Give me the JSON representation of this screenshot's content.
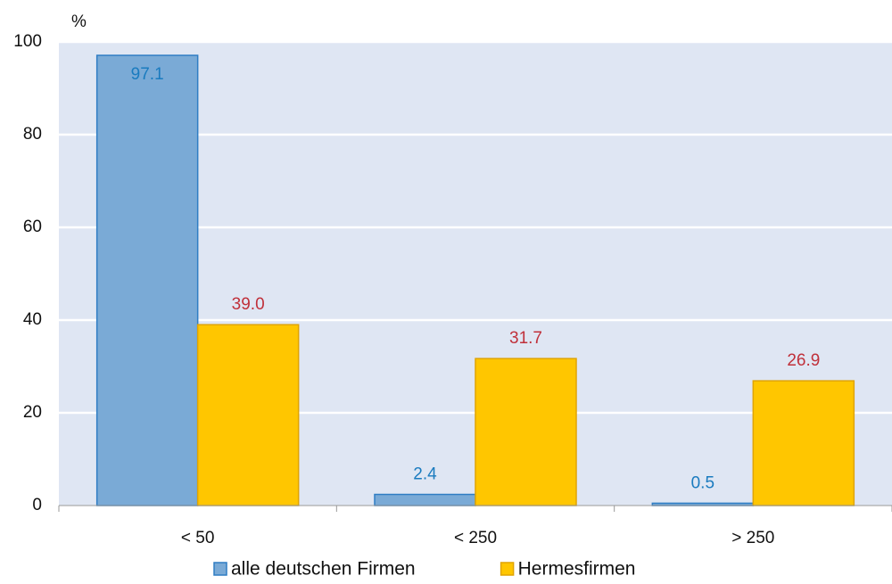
{
  "chart_data": {
    "type": "bar",
    "y_label": "%",
    "categories": [
      "< 50",
      "< 250",
      "> 250"
    ],
    "series": [
      {
        "name": "alle deutschen Firmen",
        "color": "#7aaad6",
        "values": [
          97.1,
          2.4,
          0.5
        ]
      },
      {
        "name": "Hermesfirmen",
        "color": "#ffc600",
        "values": [
          39.0,
          31.7,
          26.9
        ],
        "value_labels": [
          "39.0",
          "31.7",
          "26.9"
        ]
      }
    ],
    "ylim": [
      0,
      100
    ],
    "yticks": [
      0,
      20,
      40,
      60,
      80,
      100
    ],
    "grid": true,
    "legend": "bottom"
  }
}
